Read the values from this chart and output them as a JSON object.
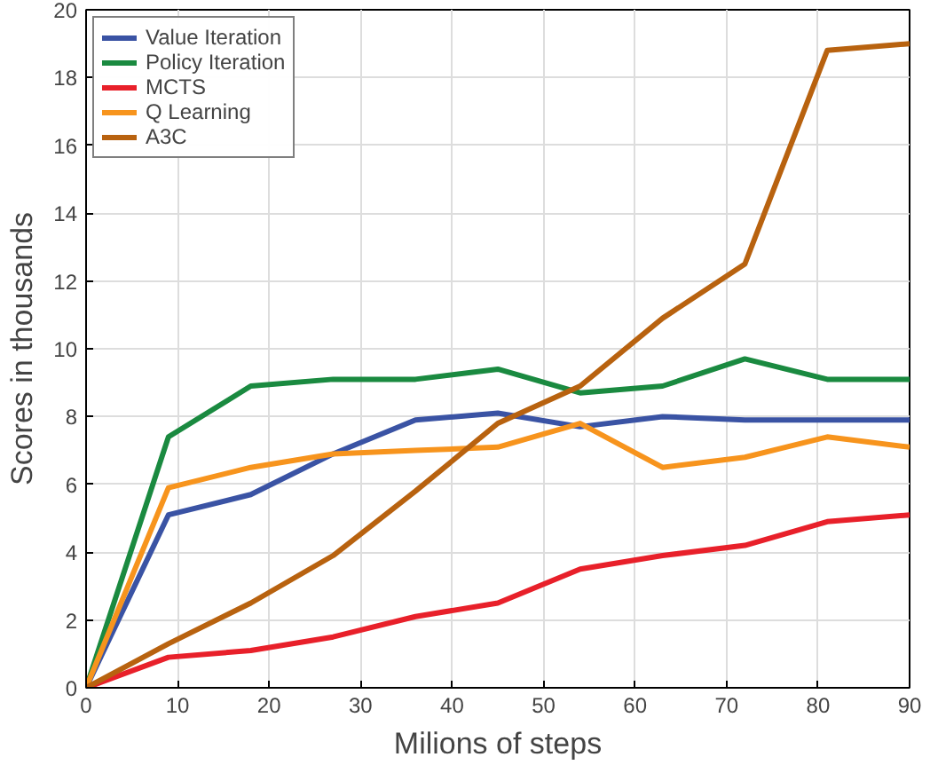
{
  "chart_data": {
    "type": "line",
    "xlabel": "Milions of steps",
    "ylabel": "Scores in thousands",
    "x": [
      0,
      9,
      18,
      27,
      36,
      45,
      54,
      63,
      72,
      81,
      90
    ],
    "series": [
      {
        "name": "Value Iteration",
        "color": "#3a53a4",
        "values": [
          0,
          5.1,
          5.7,
          6.9,
          7.9,
          8.1,
          7.7,
          8.0,
          7.9,
          7.9,
          7.9
        ]
      },
      {
        "name": "Policy Iteration",
        "color": "#1a8a40",
        "values": [
          0,
          7.4,
          8.9,
          9.1,
          9.1,
          9.4,
          8.7,
          8.9,
          9.7,
          9.1,
          9.1
        ]
      },
      {
        "name": "MCTS",
        "color": "#e8202a",
        "values": [
          0,
          0.9,
          1.1,
          1.5,
          2.1,
          2.5,
          3.5,
          3.9,
          4.2,
          4.9,
          5.1
        ]
      },
      {
        "name": "Q Learning",
        "color": "#f7941d",
        "values": [
          0,
          5.9,
          6.5,
          6.9,
          7.0,
          7.1,
          7.8,
          6.5,
          6.8,
          7.4,
          7.1
        ]
      },
      {
        "name": "A3C",
        "color": "#b8620f",
        "values": [
          0,
          1.3,
          2.5,
          3.9,
          5.8,
          7.8,
          8.9,
          10.9,
          12.5,
          18.8,
          19.0
        ]
      }
    ],
    "xlim": [
      0,
      90
    ],
    "xticks": [
      0,
      10,
      20,
      30,
      40,
      50,
      60,
      70,
      80,
      90
    ],
    "ylim": [
      0,
      20
    ],
    "yticks": [
      0,
      2,
      4,
      6,
      8,
      10,
      12,
      14,
      16,
      18,
      20
    ],
    "grid": true,
    "legend": "top left",
    "marker": "none",
    "line_style": "solid"
  }
}
